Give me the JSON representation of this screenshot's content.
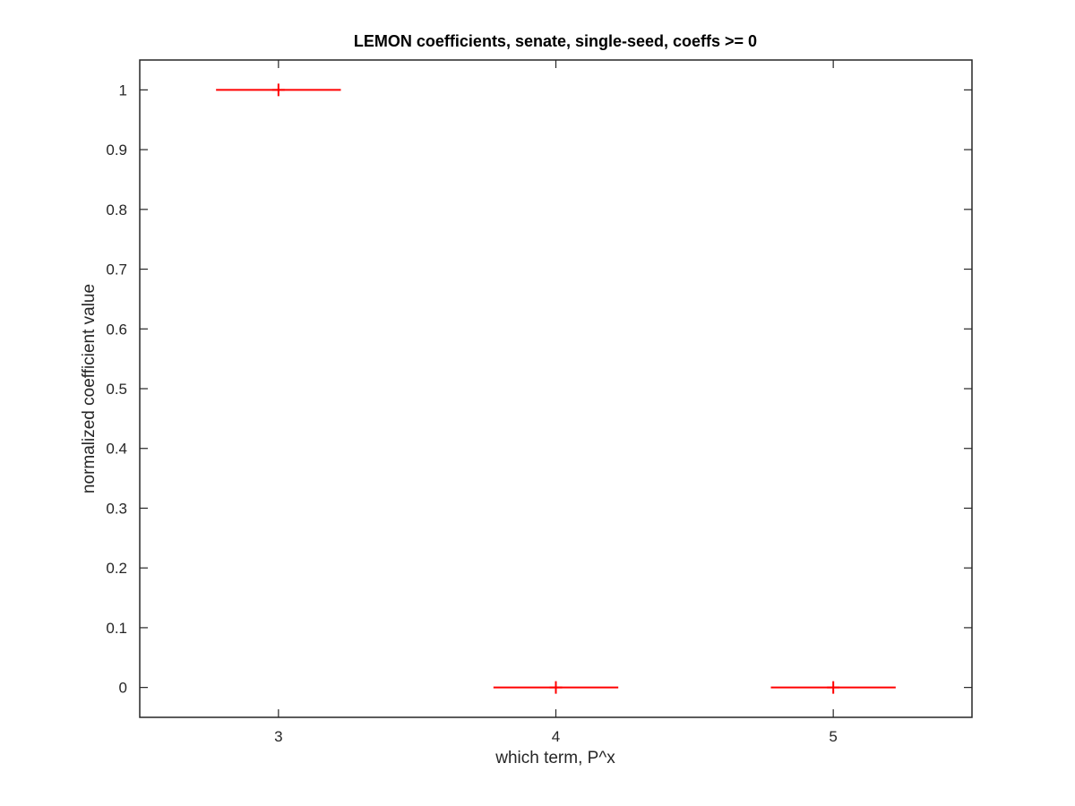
{
  "chart_data": {
    "type": "errorbar",
    "title": "LEMON coefficients, senate, single-seed, coeffs >= 0",
    "xlabel": "which term, P^x",
    "ylabel": "normalized coefficient value",
    "x": [
      3,
      4,
      5
    ],
    "y": [
      1,
      0,
      0
    ],
    "x_error": [
      0.225,
      0.225,
      0.225
    ],
    "xlim": [
      2.5,
      5.5
    ],
    "ylim": [
      -0.05,
      1.05
    ],
    "xticks": [
      3,
      4,
      5
    ],
    "xtick_labels": [
      "3",
      "4",
      "5"
    ],
    "yticks": [
      0,
      0.1,
      0.2,
      0.3,
      0.4,
      0.5,
      0.6,
      0.7,
      0.8,
      0.9,
      1
    ],
    "ytick_labels": [
      "0",
      "0.1",
      "0.2",
      "0.3",
      "0.4",
      "0.5",
      "0.6",
      "0.7",
      "0.8",
      "0.9",
      "1"
    ],
    "marker": "+",
    "grid": false,
    "colors": {
      "series": "#ff0000",
      "axes": "#262626"
    }
  }
}
